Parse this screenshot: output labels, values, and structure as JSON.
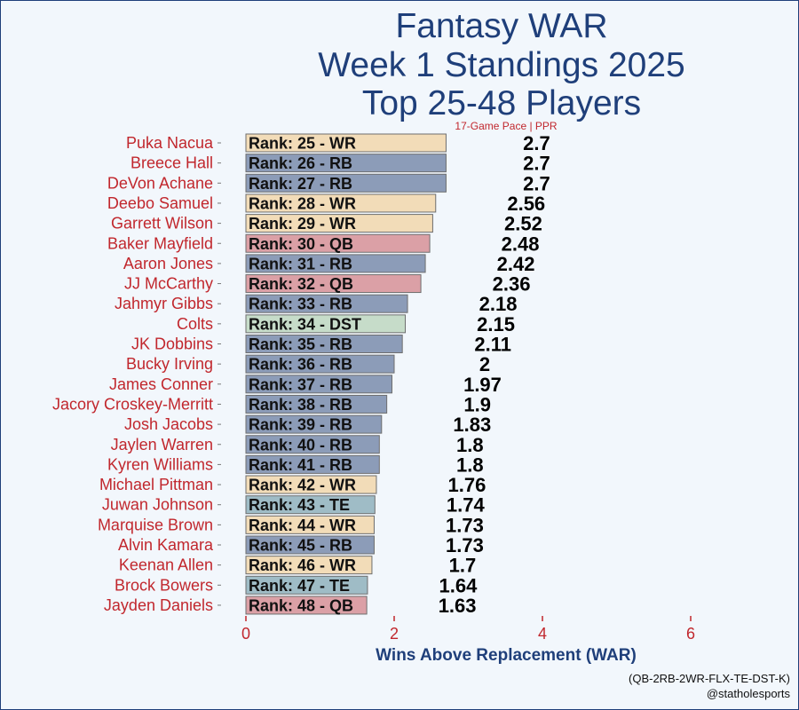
{
  "header": {
    "title_lines": [
      "Fantasy WAR",
      "Week 1 Standings 2025",
      "Top 25-48 Players"
    ],
    "subtitle": "17-Game Pace | PPR"
  },
  "footer": {
    "caption_line1": "(QB-2RB-2WR-FLX-TE-DST-K)",
    "caption_line2": "@statholesports"
  },
  "colors": {
    "WR": "#f2dcb8",
    "RB": "#8c9cb8",
    "QB": "#dba0a6",
    "DST": "#c6dcc9",
    "TE": "#9fbcc6",
    "player_label": "#c1272d",
    "axis": "#c1272d",
    "title": "#1f3f7a",
    "background": "#f2f7fc"
  },
  "chart_data": {
    "type": "bar",
    "orientation": "horizontal",
    "title": "Fantasy WAR Week 1 Standings 2025 Top 25-48 Players",
    "subtitle": "17-Game Pace | PPR",
    "xlabel": "Wins Above Replacement (WAR)",
    "ylabel": "",
    "xlim": [
      0,
      6
    ],
    "xticks": [
      0,
      2,
      4,
      6
    ],
    "grid": false,
    "legend": "none",
    "categories": [
      "Puka Nacua",
      "Breece Hall",
      "DeVon Achane",
      "Deebo Samuel",
      "Garrett Wilson",
      "Baker Mayfield",
      "Aaron Jones",
      "JJ McCarthy",
      "Jahmyr Gibbs",
      "Colts",
      "JK Dobbins",
      "Bucky Irving",
      "James Conner",
      "Jacory Croskey-Merritt",
      "Josh Jacobs",
      "Jaylen Warren",
      "Kyren Williams",
      "Michael Pittman",
      "Juwan Johnson",
      "Marquise Brown",
      "Alvin Kamara",
      "Keenan Allen",
      "Brock Bowers",
      "Jayden Daniels"
    ],
    "values": [
      2.7,
      2.7,
      2.7,
      2.56,
      2.52,
      2.48,
      2.42,
      2.36,
      2.18,
      2.15,
      2.11,
      2,
      1.97,
      1.9,
      1.83,
      1.8,
      1.8,
      1.76,
      1.74,
      1.73,
      1.73,
      1.7,
      1.64,
      1.63
    ],
    "value_labels": [
      "2.7",
      "2.7",
      "2.7",
      "2.56",
      "2.52",
      "2.48",
      "2.42",
      "2.36",
      "2.18",
      "2.15",
      "2.11",
      "2",
      "1.97",
      "1.9",
      "1.83",
      "1.8",
      "1.8",
      "1.76",
      "1.74",
      "1.73",
      "1.73",
      "1.7",
      "1.64",
      "1.63"
    ],
    "bar_labels": [
      "Rank: 25 - WR",
      "Rank: 26 - RB",
      "Rank: 27 - RB",
      "Rank: 28 - WR",
      "Rank: 29 - WR",
      "Rank: 30 - QB",
      "Rank: 31 - RB",
      "Rank: 32 - QB",
      "Rank: 33 - RB",
      "Rank: 34 - DST",
      "Rank: 35 - RB",
      "Rank: 36 - RB",
      "Rank: 37 - RB",
      "Rank: 38 - RB",
      "Rank: 39 - RB",
      "Rank: 40 - RB",
      "Rank: 41 - RB",
      "Rank: 42 - WR",
      "Rank: 43 - TE",
      "Rank: 44 - WR",
      "Rank: 45 - RB",
      "Rank: 46 - WR",
      "Rank: 47 - TE",
      "Rank: 48 - QB"
    ],
    "positions": [
      "WR",
      "RB",
      "RB",
      "WR",
      "WR",
      "QB",
      "RB",
      "QB",
      "RB",
      "DST",
      "RB",
      "RB",
      "RB",
      "RB",
      "RB",
      "RB",
      "RB",
      "WR",
      "TE",
      "WR",
      "RB",
      "WR",
      "TE",
      "QB"
    ]
  }
}
